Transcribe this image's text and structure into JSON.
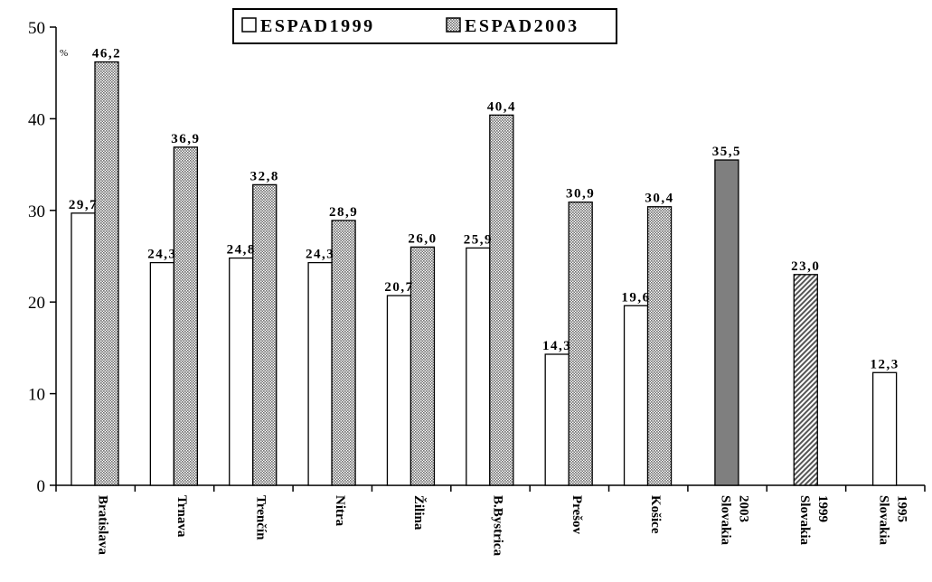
{
  "chart_data": {
    "type": "bar",
    "unit_label": "%",
    "categories": [
      "Bratislava",
      "Trnava",
      "Trenčín",
      "Nitra",
      "Žilina",
      "B.Bystrica",
      "Prešov",
      "Košice",
      "Slovakia 2003",
      "Slovakia 1999",
      "Slovakia 1995"
    ],
    "series": [
      {
        "name": "ESPAD1999",
        "fill": "white",
        "values": [
          29.7,
          24.3,
          24.8,
          24.3,
          20.7,
          25.9,
          14.3,
          19.6,
          null,
          null,
          null
        ],
        "labels": [
          "29,7",
          "24,3",
          "24,8",
          "24,3",
          "20,7",
          "25,9",
          "14,3",
          "19,6",
          "",
          "",
          ""
        ]
      },
      {
        "name": "ESPAD2003",
        "fill": "dotted-grey",
        "values": [
          46.2,
          36.9,
          32.8,
          28.9,
          26.0,
          40.4,
          30.9,
          30.4,
          null,
          null,
          null
        ],
        "labels": [
          "46,2",
          "36,9",
          "32,8",
          "28,9",
          "26,0",
          "40,4",
          "30,9",
          "30,4",
          "",
          "",
          ""
        ]
      }
    ],
    "totals": [
      {
        "category": "Slovakia 2003",
        "value": 35.5,
        "label": "35,5",
        "fill": "dark-grey"
      },
      {
        "category": "Slovakia 1999",
        "value": 23.0,
        "label": "23,0",
        "fill": "hatched"
      },
      {
        "category": "Slovakia 1995",
        "value": 12.3,
        "label": "12,3",
        "fill": "white"
      }
    ],
    "yticks": [
      "0",
      "10",
      "20",
      "30",
      "40",
      "50"
    ],
    "ylim": [
      0,
      50
    ],
    "grid": false,
    "legend_position": "top-center",
    "legend": [
      "ESPAD1999",
      "ESPAD2003"
    ],
    "colors": {
      "axis": "#000000",
      "dark_bar": "#7f7f7f",
      "dot_bg": "#ffffff",
      "dot_fg": "#777777"
    }
  }
}
